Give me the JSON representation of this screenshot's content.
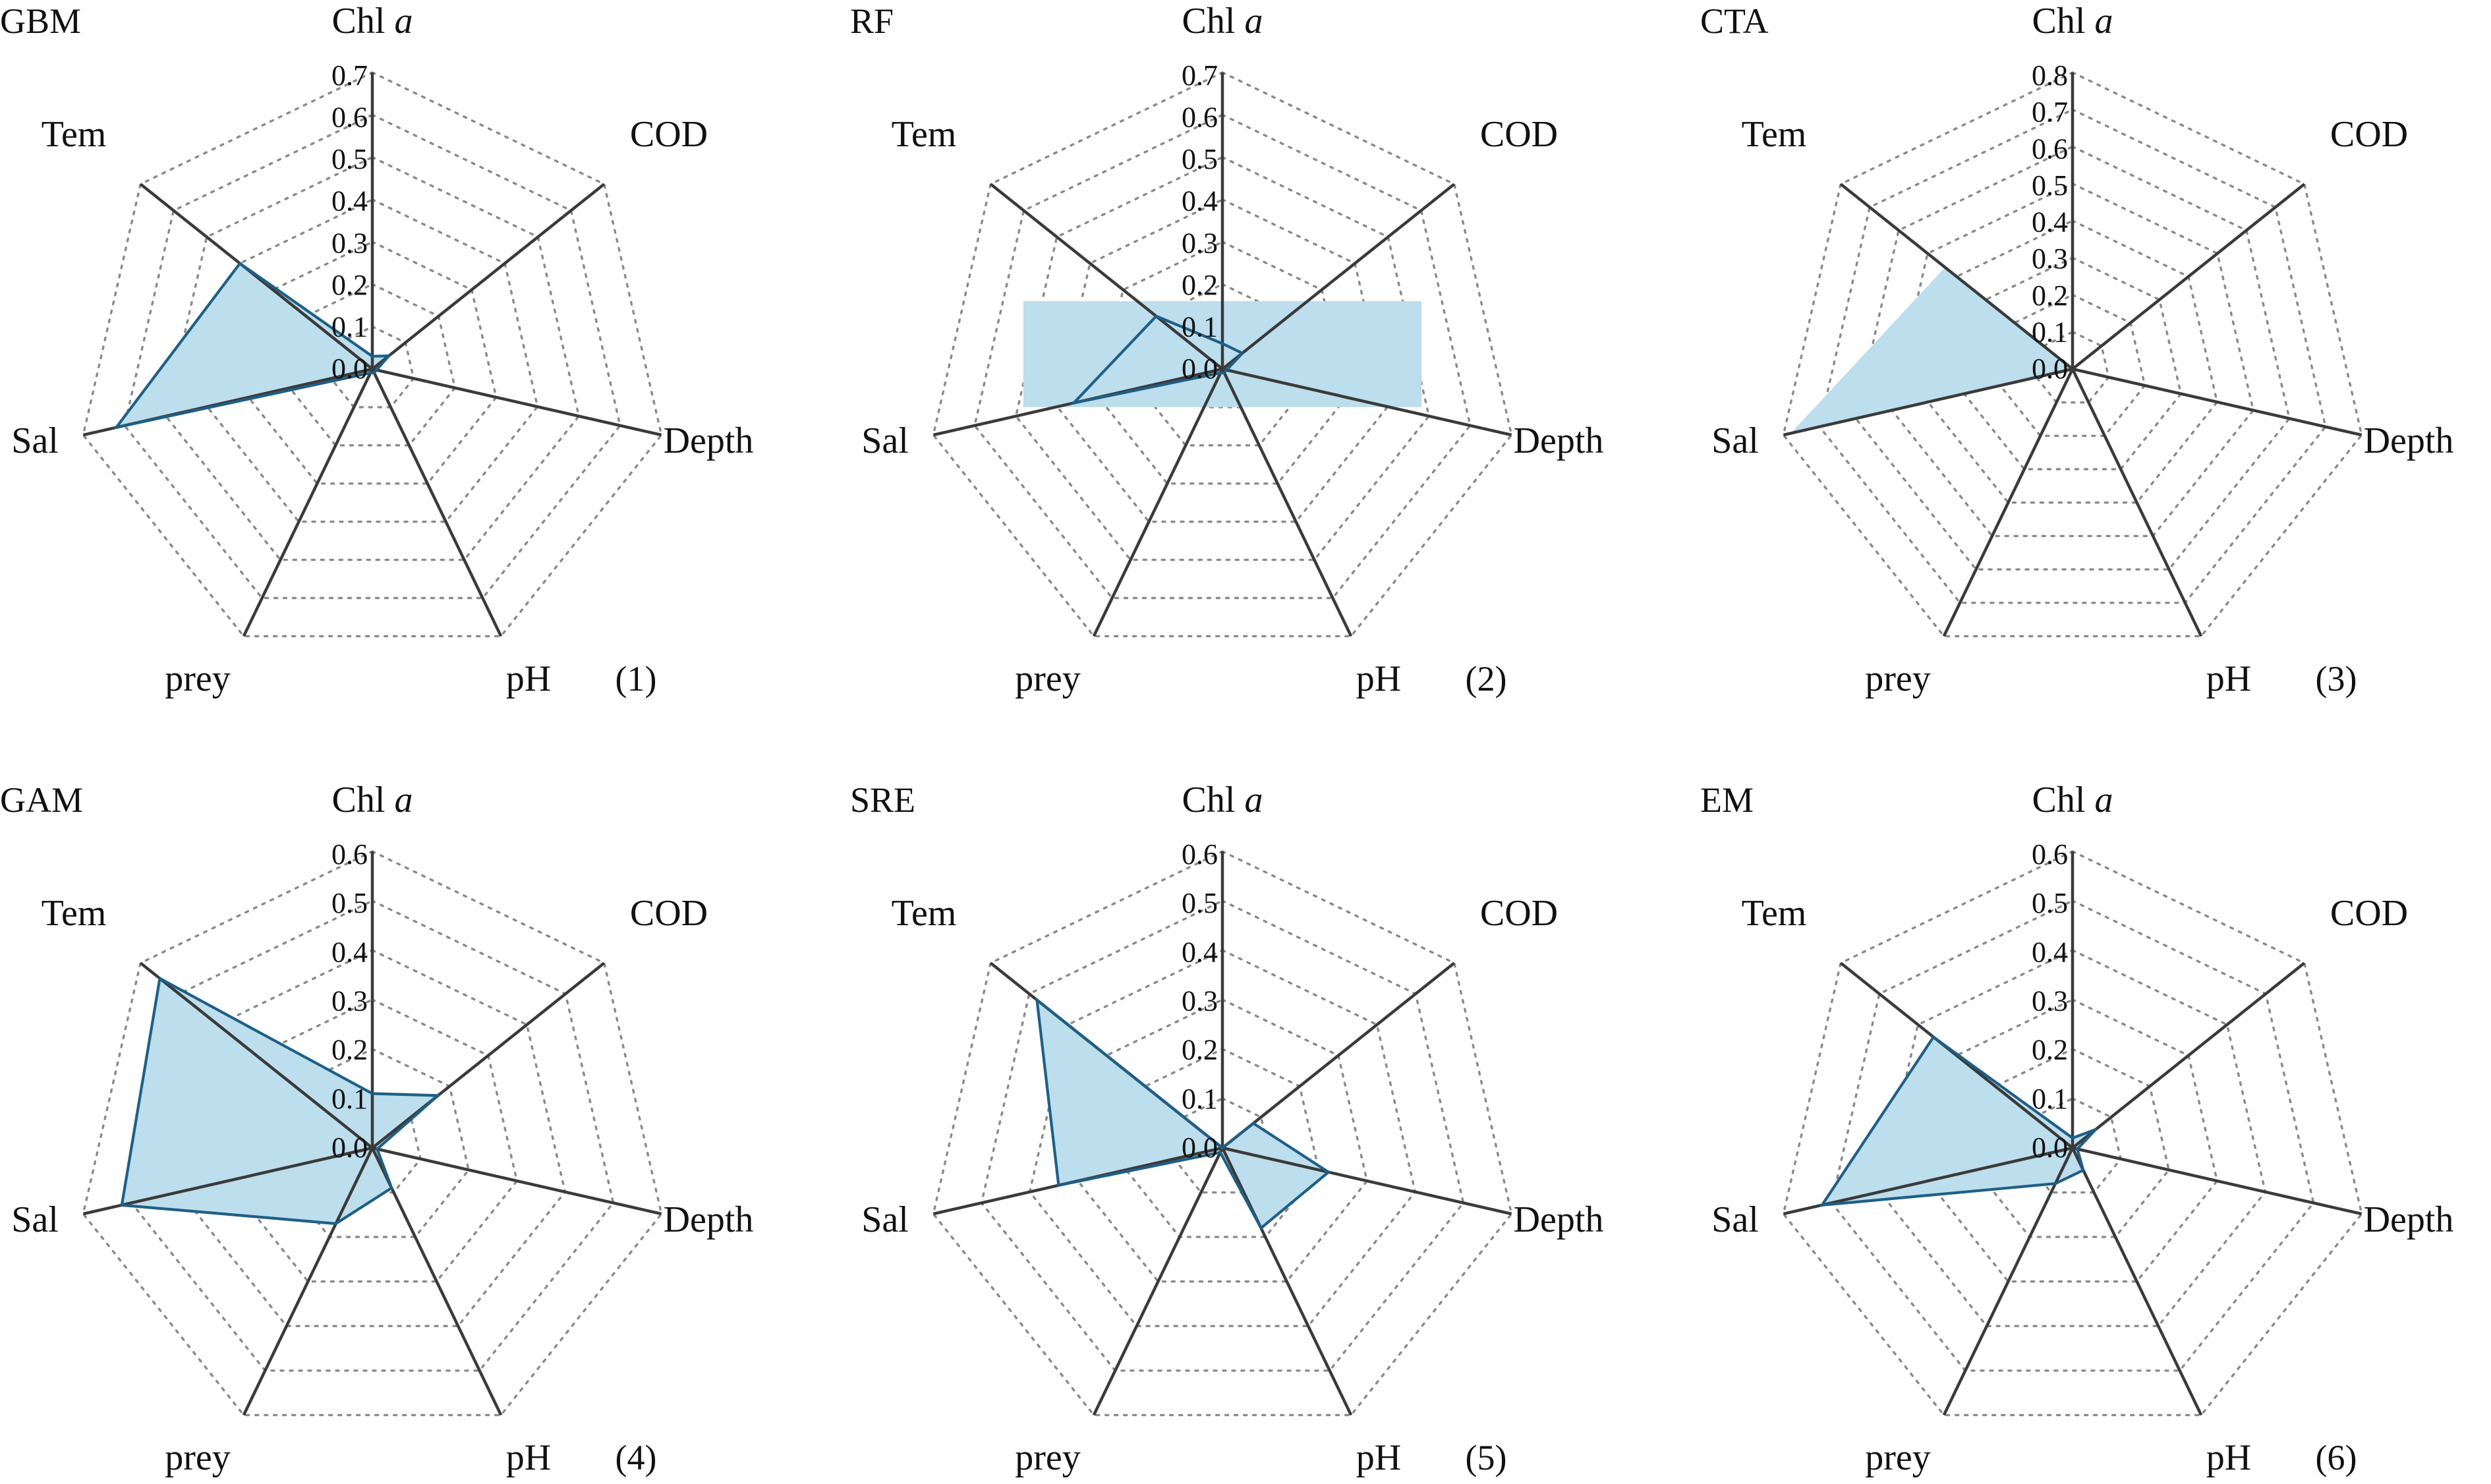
{
  "chart_data": [
    {
      "type": "radar",
      "model": "GBM",
      "panel": "(1)",
      "axes": [
        "Chl a",
        "COD",
        "Depth",
        "pH",
        "prey",
        "Sal",
        "Tem"
      ],
      "ticks": [
        "0.0",
        "0.1",
        "0.2",
        "0.3",
        "0.4",
        "0.5",
        "0.6",
        "0.7"
      ],
      "rmax": 0.7,
      "values": [
        0.03,
        0.05,
        0.01,
        0.01,
        0.01,
        0.62,
        0.4
      ],
      "series_outline": true
    },
    {
      "type": "radar",
      "model": "RF",
      "panel": "(2)",
      "axes": [
        "Chl a",
        "COD",
        "Depth",
        "pH",
        "prey",
        "Sal",
        "Tem"
      ],
      "ticks": [
        "0.0",
        "0.1",
        "0.2",
        "0.3",
        "0.4",
        "0.5",
        "0.6",
        "0.7"
      ],
      "rmax": 0.7,
      "values": [
        0.06,
        0.06,
        0.01,
        0.01,
        0.01,
        0.36,
        0.2
      ],
      "series_outline": true,
      "shaded_box": {
        "x_half_range": 0.47,
        "y_top": 0.16,
        "y_bottom": -0.09
      }
    },
    {
      "type": "radar",
      "model": "CTA",
      "panel": "(3)",
      "axes": [
        "Chl a",
        "COD",
        "Depth",
        "pH",
        "prey",
        "Sal",
        "Tem"
      ],
      "ticks": [
        "0.0",
        "0.1",
        "0.2",
        "0.3",
        "0.4",
        "0.5",
        "0.6",
        "0.7",
        "0.8"
      ],
      "rmax": 0.8,
      "values": [
        0.0,
        0.0,
        0.0,
        0.0,
        0.0,
        0.78,
        0.44
      ],
      "series_outline": false
    },
    {
      "type": "radar",
      "model": "GAM",
      "panel": "(4)",
      "axes": [
        "Chl a",
        "COD",
        "Depth",
        "pH",
        "prey",
        "Sal",
        "Tem"
      ],
      "ticks": [
        "0.0",
        "0.1",
        "0.2",
        "0.3",
        "0.4",
        "0.5",
        "0.6"
      ],
      "rmax": 0.6,
      "values": [
        0.11,
        0.17,
        0.01,
        0.09,
        0.17,
        0.52,
        0.55
      ],
      "series_outline": true
    },
    {
      "type": "radar",
      "model": "SRE",
      "panel": "(5)",
      "axes": [
        "Chl a",
        "COD",
        "Depth",
        "pH",
        "prey",
        "Sal",
        "Tem"
      ],
      "ticks": [
        "0.0",
        "0.1",
        "0.2",
        "0.3",
        "0.4",
        "0.5",
        "0.6"
      ],
      "rmax": 0.6,
      "values": [
        0.0,
        0.08,
        0.22,
        0.18,
        0.01,
        0.34,
        0.48
      ],
      "series_outline": true
    },
    {
      "type": "radar",
      "model": "EM",
      "panel": "(6)",
      "axes": [
        "Chl a",
        "COD",
        "Depth",
        "pH",
        "prey",
        "Sal",
        "Tem"
      ],
      "ticks": [
        "0.0",
        "0.1",
        "0.2",
        "0.3",
        "0.4",
        "0.5",
        "0.6"
      ],
      "rmax": 0.6,
      "values": [
        0.02,
        0.06,
        0.01,
        0.05,
        0.08,
        0.52,
        0.36
      ],
      "series_outline": true
    }
  ],
  "colors": {
    "fill": "#bcdeed",
    "stroke": "#1f5f86"
  }
}
